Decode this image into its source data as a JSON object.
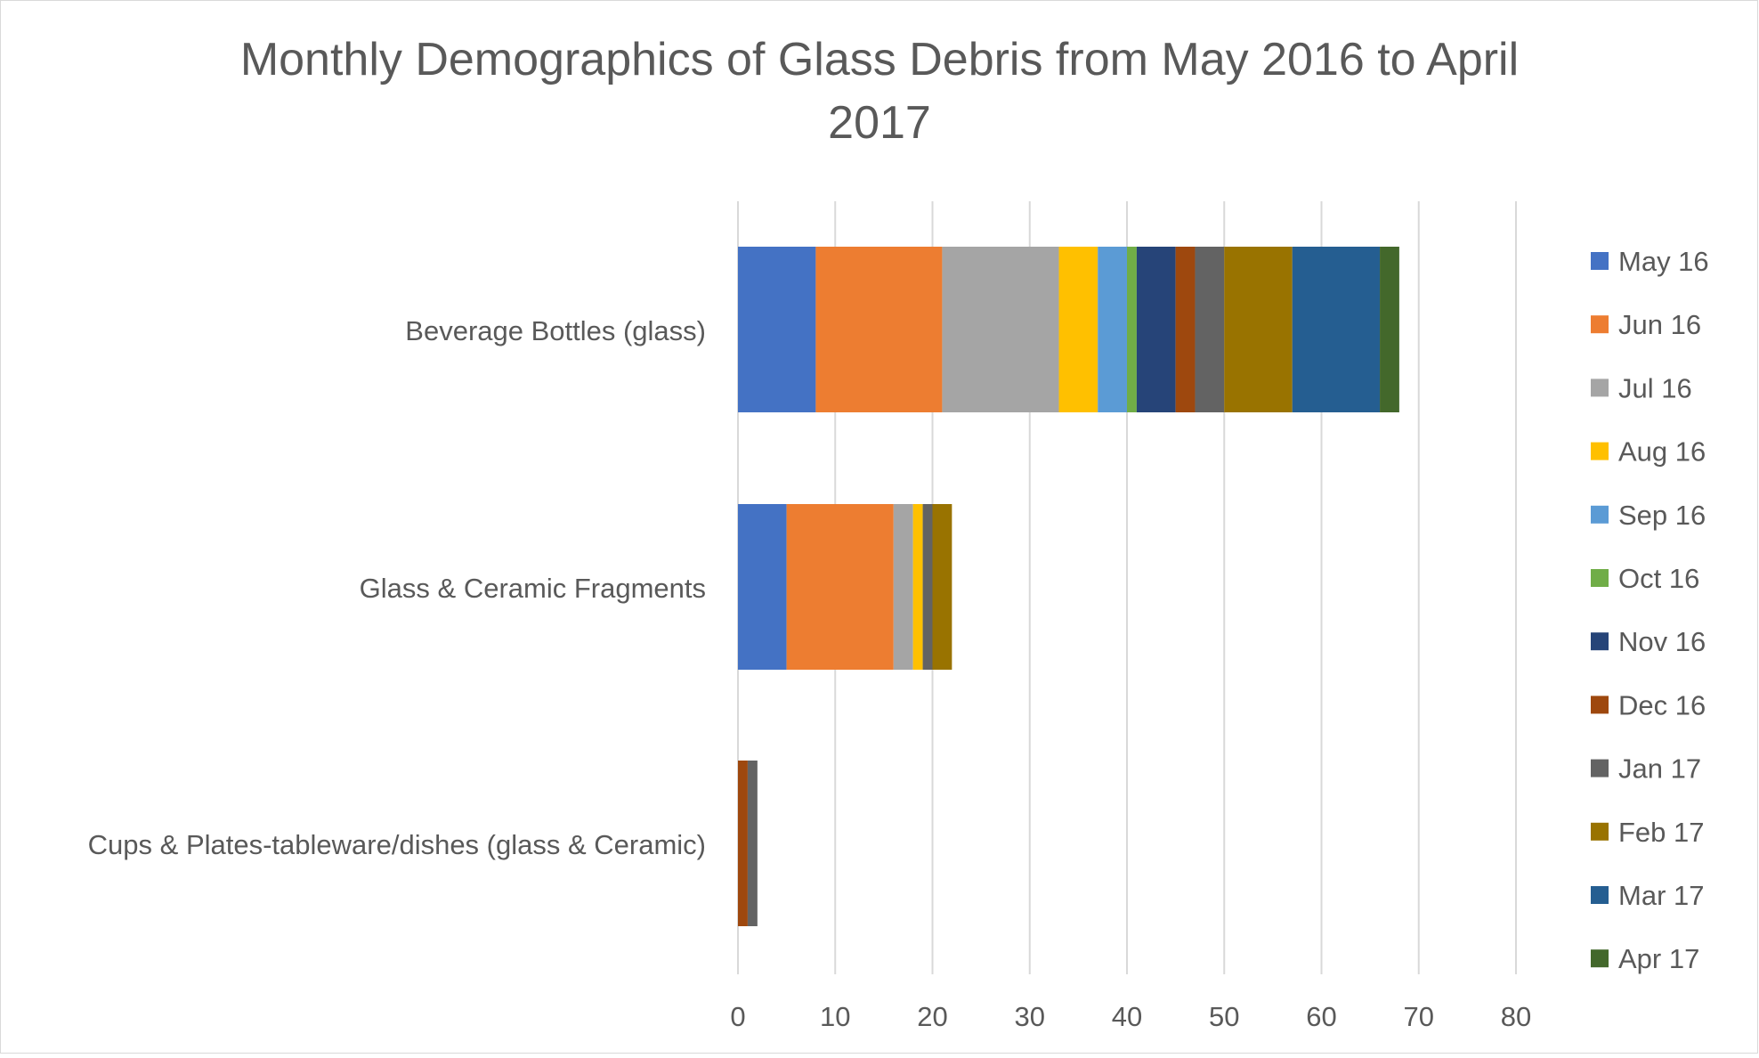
{
  "chart_data": {
    "type": "bar",
    "orientation": "horizontal",
    "stacked": true,
    "title": "Monthly Demographics of Glass Debris from May 2016 to April 2017",
    "title_lines": [
      "Monthly Demographics of Glass Debris from May 2016 to April",
      "2017"
    ],
    "categories": [
      "Beverage Bottles (glass)",
      "Glass & Ceramic Fragments",
      "Cups & Plates-tableware/dishes (glass & Ceramic)"
    ],
    "series": [
      {
        "name": "May 16",
        "color": "#4472C4",
        "values": [
          8,
          5,
          0
        ]
      },
      {
        "name": "Jun 16",
        "color": "#ED7D31",
        "values": [
          13,
          11,
          0
        ]
      },
      {
        "name": "Jul 16",
        "color": "#A5A5A5",
        "values": [
          12,
          2,
          0
        ]
      },
      {
        "name": "Aug 16",
        "color": "#FFC000",
        "values": [
          4,
          1,
          0
        ]
      },
      {
        "name": "Sep 16",
        "color": "#5B9BD5",
        "values": [
          3,
          0,
          0
        ]
      },
      {
        "name": "Oct 16",
        "color": "#70AD47",
        "values": [
          1,
          0,
          0
        ]
      },
      {
        "name": "Nov 16",
        "color": "#264478",
        "values": [
          4,
          0,
          0
        ]
      },
      {
        "name": "Dec 16",
        "color": "#9E480E",
        "values": [
          2,
          0,
          1
        ]
      },
      {
        "name": "Jan 17",
        "color": "#636363",
        "values": [
          3,
          1,
          1
        ]
      },
      {
        "name": "Feb 17",
        "color": "#997300",
        "values": [
          7,
          2,
          0
        ]
      },
      {
        "name": "Mar 17",
        "color": "#255E91",
        "values": [
          9,
          0,
          0
        ]
      },
      {
        "name": "Apr 17",
        "color": "#43682B",
        "values": [
          2,
          0,
          0
        ]
      }
    ],
    "x_ticks": [
      0,
      10,
      20,
      30,
      40,
      50,
      60,
      70,
      80
    ],
    "xlim": [
      0,
      80
    ],
    "xlabel": "",
    "ylabel": "",
    "grid": true,
    "legend_position": "right"
  }
}
